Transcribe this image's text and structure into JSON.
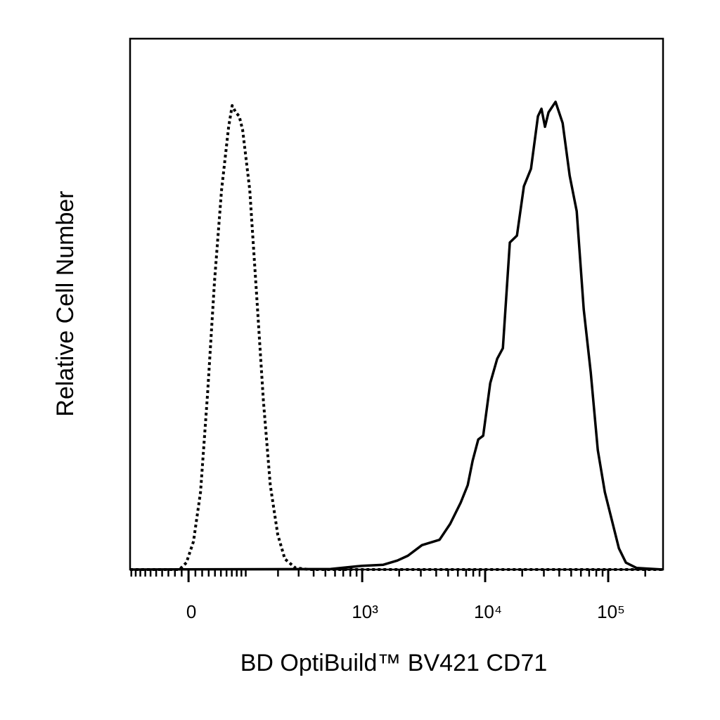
{
  "chart_data": {
    "type": "line",
    "xlabel": "BD OptiBuild™ BV421 CD71",
    "ylabel": "Relative Cell Number",
    "xscale": "asinh",
    "xlim": [
      -103,
      279000
    ],
    "ylim": [
      0,
      100
    ],
    "xticks": [
      0,
      {
        "value": 1000,
        "label": "10³"
      },
      {
        "value": 10000,
        "label": "10⁴"
      },
      {
        "value": 100000,
        "label": "10⁵"
      }
    ],
    "xminorticks": [
      -100,
      -90,
      -80,
      -70,
      -60,
      -50,
      -40,
      -30,
      -20,
      -10,
      10,
      20,
      30,
      40,
      50,
      60,
      70,
      80,
      90,
      100,
      200,
      300,
      400,
      500,
      600,
      700,
      800,
      900,
      2000,
      3000,
      4000,
      5000,
      6000,
      7000,
      8000,
      9000,
      20000,
      30000,
      40000,
      50000,
      60000,
      70000,
      80000,
      90000,
      200000
    ],
    "grid": false,
    "series": [
      {
        "color": "#000000",
        "style": "dotted",
        "x": [
          -103,
          -13.4,
          -3.1,
          7.2,
          17.6,
          28.2,
          39.3,
          51.1,
          63.9,
          70.7,
          77.9,
          85.2,
          92.9,
          109.7,
          128,
          148,
          171,
          199,
          229,
          282,
          369,
          279000
        ],
        "values": [
          0,
          0,
          1.3,
          5.3,
          14.6,
          33.1,
          54.3,
          71.5,
          83.4,
          87.4,
          86.1,
          85.4,
          82.8,
          71.5,
          51.7,
          31.8,
          15.9,
          6.6,
          2.0,
          0.3,
          0,
          0
        ]
      },
      {
        "color": "#000000",
        "style": "solid",
        "x": [
          -103,
          552,
          1000,
          1484,
          1935,
          2354,
          3065,
          4258,
          5190,
          6322,
          7212,
          7907,
          8784,
          9632,
          10987,
          12525,
          13924,
          15874,
          18110,
          20652,
          23567,
          26854,
          28670,
          30636,
          32710,
          37300,
          42600,
          48630,
          55420,
          63250,
          72110,
          82280,
          93800,
          107000,
          122150,
          139250,
          169760,
          279000
        ],
        "values": [
          0,
          0.1,
          0.7,
          0.9,
          1.7,
          2.6,
          4.6,
          5.6,
          8.6,
          12.6,
          15.9,
          20.5,
          24.5,
          25.2,
          35.1,
          39.7,
          41.7,
          61.6,
          62.9,
          72.2,
          75.5,
          85.4,
          86.8,
          83.4,
          86.1,
          88.1,
          84.1,
          74.2,
          67.5,
          49.0,
          37.1,
          22.5,
          14.6,
          9.3,
          4.0,
          1.3,
          0.3,
          0
        ]
      }
    ]
  }
}
